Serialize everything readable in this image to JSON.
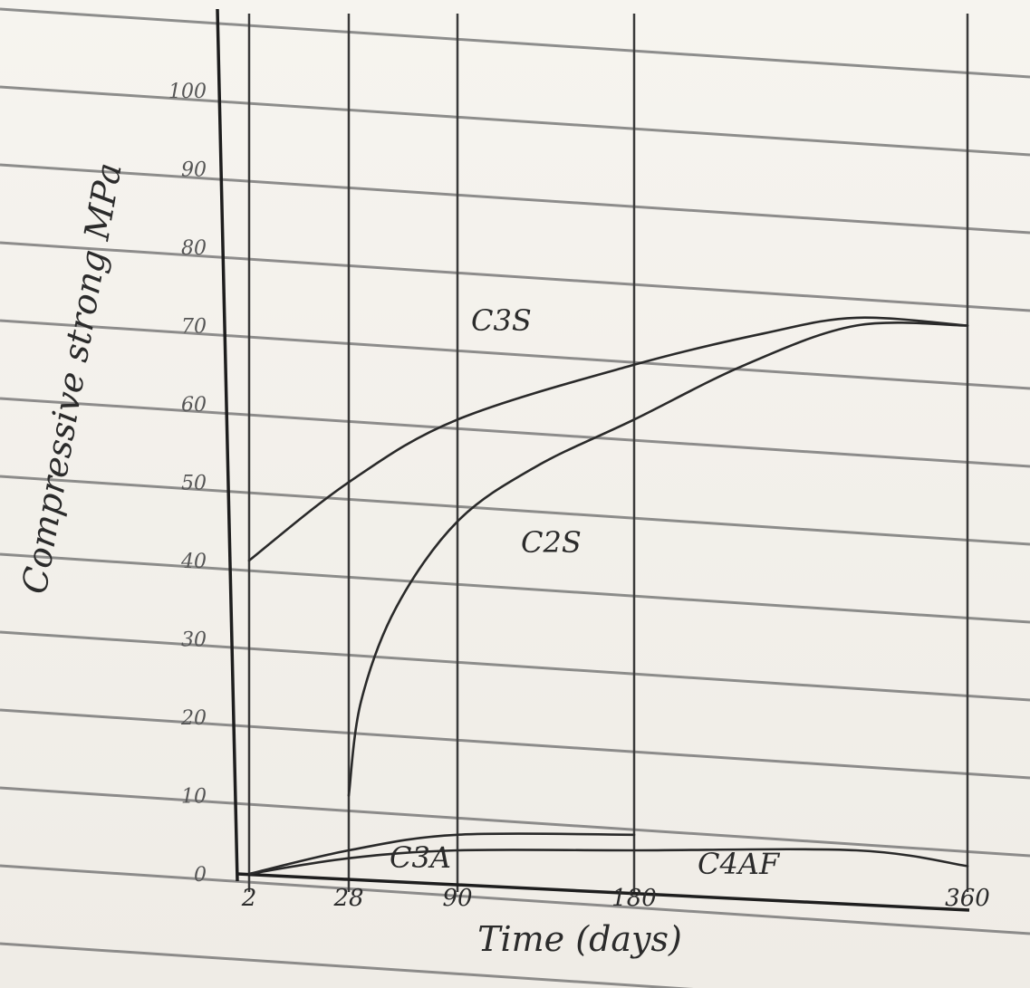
{
  "chart_data": {
    "type": "line",
    "ylabel": "Compressive strong MPa",
    "xlabel": "Time (days)",
    "y_ticks": [
      "0",
      "10",
      "20",
      "30",
      "40",
      "50",
      "60",
      "70",
      "80",
      "90",
      "100"
    ],
    "x_ticks": [
      "2",
      "28",
      "90",
      "180",
      "360"
    ],
    "ylim": [
      0,
      100
    ],
    "grid": true,
    "series": [
      {
        "name": "C3S",
        "x": [
          2,
          28,
          90,
          180,
          250,
          300,
          360
        ],
        "y": [
          40,
          50,
          58,
          65,
          69,
          71,
          70
        ]
      },
      {
        "name": "C2S",
        "x": [
          28,
          35,
          55,
          90,
          130,
          180,
          240,
          300,
          360
        ],
        "y": [
          10,
          22,
          34,
          45,
          52,
          58,
          65,
          70,
          70
        ]
      },
      {
        "name": "C3A",
        "x": [
          2,
          28,
          90,
          180
        ],
        "y": [
          0,
          3,
          5,
          5
        ]
      },
      {
        "name": "C4AF",
        "x": [
          2,
          28,
          90,
          180,
          300,
          360
        ],
        "y": [
          0,
          2,
          3,
          3,
          3,
          1
        ]
      }
    ]
  }
}
